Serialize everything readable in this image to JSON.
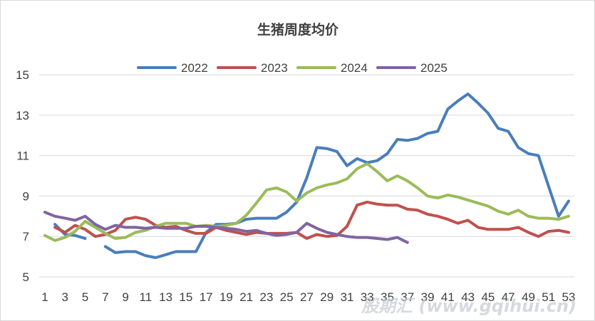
{
  "chart_data": {
    "type": "line",
    "title": "生猪周度均价",
    "xlabel": "",
    "ylabel": "",
    "ylim": [
      5,
      15
    ],
    "yticks": [
      5,
      7,
      9,
      11,
      13,
      15
    ],
    "xlim": [
      1,
      53
    ],
    "xticks": [
      1,
      3,
      5,
      7,
      9,
      11,
      13,
      15,
      17,
      19,
      21,
      23,
      25,
      27,
      29,
      31,
      33,
      35,
      37,
      39,
      41,
      43,
      45,
      47,
      49,
      51,
      53
    ],
    "grid": true,
    "legend_position": "top",
    "series": [
      {
        "name": "2022",
        "color": "#4a7ebb",
        "values": [
          null,
          7.6,
          7.1,
          7.05,
          6.9,
          null,
          6.5,
          6.2,
          6.25,
          6.25,
          6.05,
          5.95,
          6.1,
          6.25,
          6.25,
          6.25,
          7.2,
          7.6,
          7.6,
          7.65,
          7.85,
          7.9,
          7.9,
          7.9,
          8.2,
          8.7,
          9.9,
          11.4,
          11.35,
          11.2,
          10.5,
          10.85,
          10.65,
          10.75,
          11.1,
          11.8,
          11.75,
          11.85,
          12.1,
          12.2,
          13.3,
          13.7,
          14.05,
          13.6,
          13.1,
          12.35,
          12.2,
          11.4,
          11.1,
          11.0,
          9.5,
          8.0,
          8.75
        ]
      },
      {
        "name": "2023",
        "color": "#c0504d",
        "values": [
          null,
          7.45,
          7.2,
          7.55,
          7.35,
          7.0,
          7.1,
          7.3,
          7.85,
          7.95,
          7.85,
          7.55,
          7.45,
          7.5,
          7.3,
          7.15,
          7.15,
          7.45,
          7.3,
          7.2,
          7.1,
          7.2,
          7.15,
          7.15,
          7.15,
          7.2,
          6.9,
          7.1,
          7.0,
          7.05,
          7.5,
          8.55,
          8.7,
          8.6,
          8.55,
          8.55,
          8.35,
          8.3,
          8.1,
          8.0,
          7.85,
          7.65,
          7.8,
          7.45,
          7.35,
          7.35,
          7.35,
          7.45,
          7.2,
          7.0,
          7.25,
          7.3,
          7.2
        ]
      },
      {
        "name": "2024",
        "color": "#9bbb59",
        "values": [
          7.05,
          6.8,
          6.95,
          7.25,
          7.75,
          7.45,
          7.15,
          6.9,
          6.95,
          7.2,
          7.3,
          7.5,
          7.65,
          7.65,
          7.65,
          7.5,
          7.55,
          7.5,
          7.55,
          7.65,
          8.05,
          8.65,
          9.3,
          9.4,
          9.2,
          8.75,
          9.15,
          9.4,
          9.55,
          9.65,
          9.85,
          10.35,
          10.6,
          10.2,
          9.75,
          10.0,
          9.75,
          9.4,
          9.0,
          8.9,
          9.05,
          8.95,
          8.8,
          8.65,
          8.5,
          8.25,
          8.1,
          8.3,
          8.0,
          7.9,
          7.9,
          7.85,
          8.0
        ]
      },
      {
        "name": "2025",
        "color": "#8064a2",
        "values": [
          8.2,
          8.0,
          7.9,
          7.8,
          8.0,
          7.6,
          7.35,
          7.55,
          7.45,
          7.45,
          7.4,
          7.45,
          7.4,
          7.4,
          7.4,
          7.5,
          7.5,
          7.45,
          7.4,
          7.35,
          7.25,
          7.3,
          7.15,
          7.05,
          7.1,
          7.2,
          7.65,
          7.4,
          7.2,
          7.1,
          7.0,
          6.95,
          6.95,
          6.9,
          6.85,
          6.95,
          6.7,
          null,
          null,
          null,
          null,
          null,
          null,
          null,
          null,
          null,
          null,
          null,
          null,
          null,
          null,
          null,
          null
        ]
      }
    ]
  },
  "watermark": "股期汇 (www.gqihui.cn)"
}
